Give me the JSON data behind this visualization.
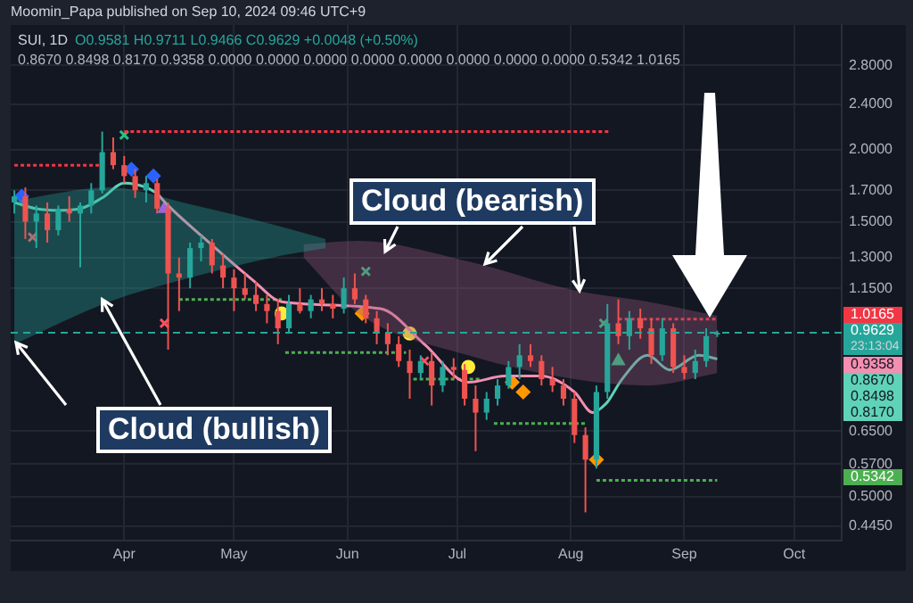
{
  "chart_data": {
    "type": "candlestick",
    "title": "SUI, 1D",
    "x": [
      "2024-03-02",
      "2024-03-05",
      "2024-03-08",
      "2024-03-11",
      "2024-03-14",
      "2024-03-17",
      "2024-03-20",
      "2024-03-23",
      "2024-03-26",
      "2024-03-29",
      "2024-04-01",
      "2024-04-04",
      "2024-04-07",
      "2024-04-10",
      "2024-04-13",
      "2024-04-16",
      "2024-04-19",
      "2024-04-22",
      "2024-04-25",
      "2024-04-28",
      "2024-05-01",
      "2024-05-04",
      "2024-05-07",
      "2024-05-10",
      "2024-05-13",
      "2024-05-16",
      "2024-05-19",
      "2024-05-22",
      "2024-05-25",
      "2024-05-28",
      "2024-05-31",
      "2024-06-03",
      "2024-06-06",
      "2024-06-09",
      "2024-06-12",
      "2024-06-15",
      "2024-06-18",
      "2024-06-21",
      "2024-06-24",
      "2024-06-27",
      "2024-06-30",
      "2024-07-03",
      "2024-07-06",
      "2024-07-09",
      "2024-07-12",
      "2024-07-15",
      "2024-07-18",
      "2024-07-21",
      "2024-07-24",
      "2024-07-27",
      "2024-07-30",
      "2024-08-02",
      "2024-08-05",
      "2024-08-08",
      "2024-08-11",
      "2024-08-14",
      "2024-08-17",
      "2024-08-20",
      "2024-08-23",
      "2024-08-26",
      "2024-08-29",
      "2024-09-01",
      "2024-09-04",
      "2024-09-07",
      "2024-09-10"
    ],
    "ohlc": [
      [
        1.62,
        1.7,
        1.55,
        1.66
      ],
      [
        1.66,
        1.72,
        1.4,
        1.5
      ],
      [
        1.5,
        1.6,
        1.35,
        1.55
      ],
      [
        1.55,
        1.62,
        1.38,
        1.45
      ],
      [
        1.45,
        1.6,
        1.42,
        1.58
      ],
      [
        1.58,
        1.66,
        1.5,
        1.55
      ],
      [
        1.55,
        1.62,
        1.25,
        1.6
      ],
      [
        1.6,
        1.75,
        1.55,
        1.7
      ],
      [
        1.7,
        2.15,
        1.68,
        1.98
      ],
      [
        1.98,
        2.1,
        1.85,
        1.88
      ],
      [
        1.88,
        1.95,
        1.75,
        1.8
      ],
      [
        1.8,
        1.85,
        1.65,
        1.7
      ],
      [
        1.7,
        1.8,
        1.62,
        1.75
      ],
      [
        1.75,
        1.78,
        1.55,
        1.58
      ],
      [
        1.58,
        1.62,
        0.9,
        1.22
      ],
      [
        1.22,
        1.3,
        1.05,
        1.2
      ],
      [
        1.2,
        1.38,
        1.15,
        1.35
      ],
      [
        1.35,
        1.42,
        1.28,
        1.38
      ],
      [
        1.38,
        1.4,
        1.22,
        1.26
      ],
      [
        1.26,
        1.32,
        1.15,
        1.2
      ],
      [
        1.2,
        1.24,
        1.05,
        1.15
      ],
      [
        1.15,
        1.22,
        1.1,
        1.12
      ],
      [
        1.12,
        1.18,
        1.05,
        1.08
      ],
      [
        1.08,
        1.12,
        1.0,
        1.05
      ],
      [
        1.05,
        1.1,
        0.92,
        0.98
      ],
      [
        0.98,
        1.12,
        0.96,
        1.08
      ],
      [
        1.08,
        1.15,
        1.04,
        1.05
      ],
      [
        1.05,
        1.12,
        1.02,
        1.1
      ],
      [
        1.1,
        1.15,
        1.05,
        1.08
      ],
      [
        1.08,
        1.12,
        1.02,
        1.06
      ],
      [
        1.06,
        1.2,
        1.04,
        1.15
      ],
      [
        1.15,
        1.22,
        1.08,
        1.1
      ],
      [
        1.1,
        1.12,
        1.0,
        1.02
      ],
      [
        1.02,
        1.05,
        0.92,
        0.96
      ],
      [
        0.96,
        1.0,
        0.88,
        0.92
      ],
      [
        0.92,
        0.95,
        0.84,
        0.86
      ],
      [
        0.86,
        0.9,
        0.74,
        0.82
      ],
      [
        0.82,
        0.88,
        0.8,
        0.86
      ],
      [
        0.86,
        0.89,
        0.72,
        0.78
      ],
      [
        0.78,
        0.86,
        0.76,
        0.84
      ],
      [
        0.84,
        0.87,
        0.8,
        0.83
      ],
      [
        0.83,
        0.85,
        0.72,
        0.74
      ],
      [
        0.74,
        0.78,
        0.6,
        0.7
      ],
      [
        0.7,
        0.76,
        0.68,
        0.74
      ],
      [
        0.74,
        0.8,
        0.72,
        0.78
      ],
      [
        0.78,
        0.86,
        0.77,
        0.84
      ],
      [
        0.84,
        0.92,
        0.8,
        0.88
      ],
      [
        0.88,
        0.92,
        0.84,
        0.86
      ],
      [
        0.86,
        0.88,
        0.78,
        0.8
      ],
      [
        0.8,
        0.84,
        0.76,
        0.78
      ],
      [
        0.78,
        0.8,
        0.72,
        0.74
      ],
      [
        0.74,
        0.76,
        0.62,
        0.64
      ],
      [
        0.64,
        0.66,
        0.47,
        0.58
      ],
      [
        0.58,
        0.78,
        0.56,
        0.76
      ],
      [
        0.76,
        1.08,
        0.74,
        1.0
      ],
      [
        1.0,
        1.1,
        0.92,
        0.95
      ],
      [
        0.95,
        1.05,
        0.9,
        1.02
      ],
      [
        1.02,
        1.06,
        0.94,
        0.98
      ],
      [
        0.98,
        1.02,
        0.85,
        0.88
      ],
      [
        0.88,
        1.02,
        0.86,
        0.98
      ],
      [
        0.98,
        1.0,
        0.82,
        0.84
      ],
      [
        0.84,
        0.88,
        0.8,
        0.82
      ],
      [
        0.82,
        0.9,
        0.8,
        0.86
      ],
      [
        0.86,
        0.98,
        0.84,
        0.95
      ],
      [
        0.9581,
        0.9711,
        0.9466,
        0.9629
      ]
    ],
    "series": [
      {
        "type": "area",
        "color": "#26a69a",
        "x": [
          "2024-03-02",
          "2024-03-28",
          "2024-04-17",
          "2024-05-14",
          "2024-05-26"
        ],
        "values": [
          null,
          null,
          null,
          null,
          null
        ],
        "lower": [
          0.92,
          1.09,
          1.19,
          1.31,
          1.35
        ],
        "upper": [
          1.63,
          1.72,
          1.62,
          1.47,
          1.4
        ]
      },
      {
        "type": "area",
        "color": "#9c5a7e",
        "x": [
          "2024-05-20",
          "2024-06-04",
          "2024-07-04",
          "2024-08-02",
          "2024-08-22",
          "2024-09-10"
        ],
        "values": [
          null,
          null,
          null,
          null,
          null,
          null
        ],
        "lower": [
          1.3,
          1.04,
          0.88,
          0.8,
          0.78,
          0.82
        ],
        "upper": [
          1.37,
          1.39,
          1.28,
          1.14,
          1.09,
          1.03
        ]
      },
      {
        "type": "line",
        "color": "#5fd3b8",
        "marker": "none",
        "x": [
          "2024-03-02",
          "2024-03-08",
          "2024-03-14",
          "2024-03-20",
          "2024-03-26",
          "2024-04-01",
          "2024-04-07",
          "2024-04-10"
        ],
        "values": [
          1.62,
          1.58,
          1.57,
          1.58,
          1.65,
          1.75,
          1.72,
          1.68
        ]
      },
      {
        "type": "line",
        "color": "#f48fb1",
        "marker": "none",
        "x": [
          "2024-04-10",
          "2024-04-13",
          "2024-04-22",
          "2024-05-06",
          "2024-05-14",
          "2024-06-10",
          "2024-06-22",
          "2024-07-04",
          "2024-07-14",
          "2024-07-24",
          "2024-08-02",
          "2024-08-07",
          "2024-08-09"
        ],
        "values": [
          1.68,
          1.6,
          1.42,
          1.19,
          1.09,
          1.06,
          0.92,
          0.79,
          0.81,
          0.81,
          0.76,
          0.7,
          0.71
        ]
      },
      {
        "type": "line",
        "color": "#5fd3b8",
        "marker": "none",
        "x": [
          "2024-08-09",
          "2024-08-11",
          "2024-08-15",
          "2024-08-22",
          "2024-08-28",
          "2024-09-05",
          "2024-09-10"
        ],
        "values": [
          0.71,
          0.73,
          0.8,
          0.88,
          0.83,
          0.88,
          0.867
        ]
      },
      {
        "type": "line",
        "color": "#f23645",
        "marker": "none",
        "line_style": "dotted",
        "x": [
          "2024-03-02",
          "2024-03-26"
        ],
        "values": [
          1.88,
          1.88
        ]
      },
      {
        "type": "line",
        "color": "#f23645",
        "marker": "none",
        "line_style": "dotted",
        "x": [
          "2024-04-01",
          "2024-08-12"
        ],
        "values": [
          2.15,
          2.15
        ]
      },
      {
        "type": "line",
        "color": "#4caf50",
        "marker": "none",
        "line_style": "dotted",
        "x": [
          "2024-04-16",
          "2024-05-14"
        ],
        "values": [
          1.1,
          1.1
        ]
      },
      {
        "type": "line",
        "color": "#4caf50",
        "marker": "none",
        "line_style": "dotted",
        "x": [
          "2024-05-15",
          "2024-06-17"
        ],
        "values": [
          0.89,
          0.89
        ]
      },
      {
        "type": "line",
        "color": "#4caf50",
        "marker": "none",
        "line_style": "dotted",
        "x": [
          "2024-06-19",
          "2024-07-07"
        ],
        "values": [
          0.8,
          0.8
        ]
      },
      {
        "type": "line",
        "color": "#4caf50",
        "marker": "none",
        "line_style": "dotted",
        "x": [
          "2024-07-11",
          "2024-08-05"
        ],
        "values": [
          0.67,
          0.67
        ]
      },
      {
        "type": "line",
        "color": "#4caf50",
        "marker": "none",
        "line_style": "dotted",
        "x": [
          "2024-08-08",
          "2024-09-10"
        ],
        "values": [
          0.5342,
          0.5342
        ]
      },
      {
        "type": "line",
        "color": "#f23645",
        "marker": "none",
        "line_style": "dotted",
        "x": [
          "2024-08-14",
          "2024-09-10"
        ],
        "values": [
          1.0165,
          1.0165
        ]
      },
      {
        "type": "scatter",
        "color": "#2962ff",
        "marker": "diamond",
        "x": [
          "2024-03-04",
          "2024-04-03",
          "2024-04-09"
        ],
        "values": [
          1.66,
          1.85,
          1.8
        ]
      },
      {
        "type": "scatter",
        "color": "#e040fb",
        "marker": "triangle",
        "x": [
          "2024-04-12"
        ],
        "values": [
          1.58
        ]
      },
      {
        "type": "scatter",
        "color": "#26c281",
        "marker": "cross",
        "x": [
          "2024-04-01",
          "2024-06-06",
          "2024-08-10"
        ],
        "values": [
          2.12,
          1.23,
          1.0
        ]
      },
      {
        "type": "scatter",
        "color": "#f7525f",
        "marker": "cross",
        "x": [
          "2024-03-07",
          "2024-04-12",
          "2024-06-22"
        ],
        "values": [
          1.41,
          1.0,
          0.86
        ]
      },
      {
        "type": "scatter",
        "color": "#ffeb3b",
        "marker": "circle",
        "x": [
          "2024-05-14",
          "2024-06-18",
          "2024-07-04"
        ],
        "values": [
          1.04,
          0.96,
          0.84
        ]
      },
      {
        "type": "scatter",
        "color": "#ff9800",
        "marker": "diamond",
        "x": [
          "2024-06-05",
          "2024-07-16",
          "2024-07-19",
          "2024-08-08"
        ],
        "values": [
          1.04,
          0.79,
          0.76,
          0.58
        ]
      },
      {
        "type": "scatter",
        "color": "#26c281",
        "marker": "triangle",
        "x": [
          "2024-08-14"
        ],
        "values": [
          0.86
        ]
      }
    ],
    "ref_lines": [
      {
        "axis": "y",
        "value": 0.9629,
        "label": "0.9629",
        "color": "#26a69a",
        "line_style": "dashed"
      }
    ],
    "annotations": [
      "Moomin_Papa published on Sep 10, 2024 09:46 UTC+9",
      "O0.9581 H0.9711 L0.9466 C0.9629 +0.0048 (+0.50%)",
      "0.8670 0.8498 0.8170 0.9358 0.0000 0.0000 0.0000 0.0000 0.0000 0.0000 0.0000 0.0000 0.5342 1.0165",
      "Cloud (bearish)",
      {
        "text": "Cloud (bullish)",
        "x": "2024-03-26",
        "y": 1.1
      },
      "23:13:04",
      "1.0165",
      "0.9358",
      "0.8670",
      "0.8498",
      "0.8170",
      "0.5342"
    ],
    "log": true,
    "ylim": [
      0.42,
      3.29
    ],
    "yticks": [
      {
        "value": 0.445,
        "label": "0.4450"
      },
      {
        "value": 0.5,
        "label": "0.5000"
      },
      {
        "value": 0.57,
        "label": "0.5700"
      },
      {
        "value": 0.65,
        "label": "0.6500"
      },
      {
        "value": 1.15,
        "label": "1.1500"
      },
      {
        "value": 1.3,
        "label": "1.3000"
      },
      {
        "value": 1.5,
        "label": "1.5000"
      },
      {
        "value": 1.7,
        "label": "1.7000"
      },
      {
        "value": 2.0,
        "label": "2.0000"
      },
      {
        "value": 2.4,
        "label": "2.4000"
      },
      {
        "value": 2.8,
        "label": "2.8000"
      }
    ],
    "xlim": [
      "2024-03-01",
      "2024-10-14"
    ],
    "xticks": [
      {
        "value": "2024-04-01",
        "label": "Apr"
      },
      {
        "value": "2024-05-01",
        "label": "May"
      },
      {
        "value": "2024-06-01",
        "label": "Jun"
      },
      {
        "value": "2024-07-01",
        "label": "Jul"
      },
      {
        "value": "2024-08-01",
        "label": "Aug"
      },
      {
        "value": "2024-09-01",
        "label": "Sep"
      },
      {
        "value": "2024-10-01",
        "label": "Oct"
      }
    ],
    "grid": true,
    "legend": false
  }
}
